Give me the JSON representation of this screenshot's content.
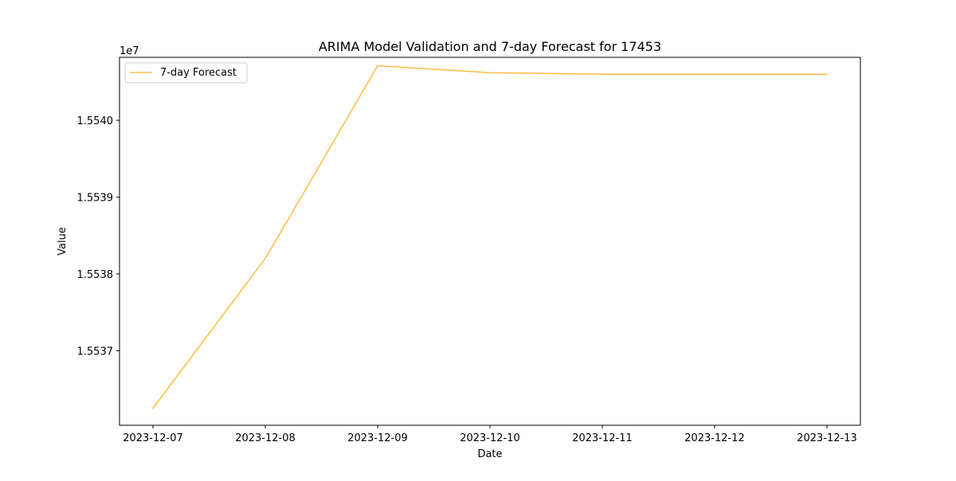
{
  "chart_data": {
    "type": "line",
    "title": "ARIMA Model Validation and 7-day Forecast for 17453",
    "xlabel": "Date",
    "ylabel": "Value",
    "y_offset_text": "1e7",
    "x": [
      "2023-12-07",
      "2023-12-08",
      "2023-12-09",
      "2023-12-10",
      "2023-12-11",
      "2023-12-12",
      "2023-12-13"
    ],
    "series": [
      {
        "name": "7-day Forecast",
        "color": "#ffbf4d",
        "values": [
          15536250,
          15538200,
          15540710,
          15540620,
          15540600,
          15540600,
          15540600
        ]
      }
    ],
    "y_ticks": [
      15537000,
      15538000,
      15539000,
      15540000
    ],
    "y_tick_labels": [
      "1.5537",
      "1.5538",
      "1.5539",
      "1.5540"
    ],
    "ylim": [
      15536030,
      15540820
    ],
    "grid": false,
    "legend": "upper left"
  }
}
